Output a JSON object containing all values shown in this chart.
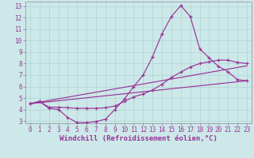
{
  "xlabel": "Windchill (Refroidissement éolien,°C)",
  "bg_color": "#cce8e8",
  "line_color": "#993399",
  "xlim": [
    -0.5,
    23.5
  ],
  "ylim": [
    2.8,
    13.4
  ],
  "xticks": [
    0,
    1,
    2,
    3,
    4,
    5,
    6,
    7,
    8,
    9,
    10,
    11,
    12,
    13,
    14,
    15,
    16,
    17,
    18,
    19,
    20,
    21,
    22,
    23
  ],
  "yticks": [
    3,
    4,
    5,
    6,
    7,
    8,
    9,
    10,
    11,
    12,
    13
  ],
  "line1_x": [
    0,
    1,
    2,
    3,
    4,
    5,
    6,
    7,
    8,
    9,
    10,
    11,
    12,
    13,
    14,
    15,
    16,
    17,
    18,
    19,
    20,
    21,
    22,
    23
  ],
  "line1_y": [
    4.5,
    4.7,
    4.1,
    4.0,
    3.3,
    2.85,
    2.85,
    2.95,
    3.15,
    4.0,
    4.9,
    6.0,
    7.0,
    8.6,
    10.6,
    12.1,
    13.05,
    12.1,
    9.3,
    8.5,
    7.75,
    7.3,
    6.6,
    6.5
  ],
  "line2_x": [
    0,
    1,
    2,
    3,
    4,
    5,
    6,
    7,
    8,
    9,
    10,
    11,
    12,
    13,
    14,
    15,
    16,
    17,
    18,
    19,
    20,
    21,
    22,
    23
  ],
  "line2_y": [
    4.5,
    4.7,
    4.2,
    4.2,
    4.15,
    4.1,
    4.1,
    4.1,
    4.15,
    4.3,
    4.7,
    5.1,
    5.35,
    5.7,
    6.2,
    6.8,
    7.25,
    7.7,
    8.0,
    8.15,
    8.3,
    8.3,
    8.1,
    8.0
  ],
  "line3_x": [
    0,
    23
  ],
  "line3_y": [
    4.5,
    6.5
  ],
  "line4_x": [
    0,
    23
  ],
  "line4_y": [
    4.5,
    7.8
  ],
  "grid_color": "#b0d4d4",
  "tick_fontsize": 5.5,
  "xlabel_fontsize": 6.5
}
